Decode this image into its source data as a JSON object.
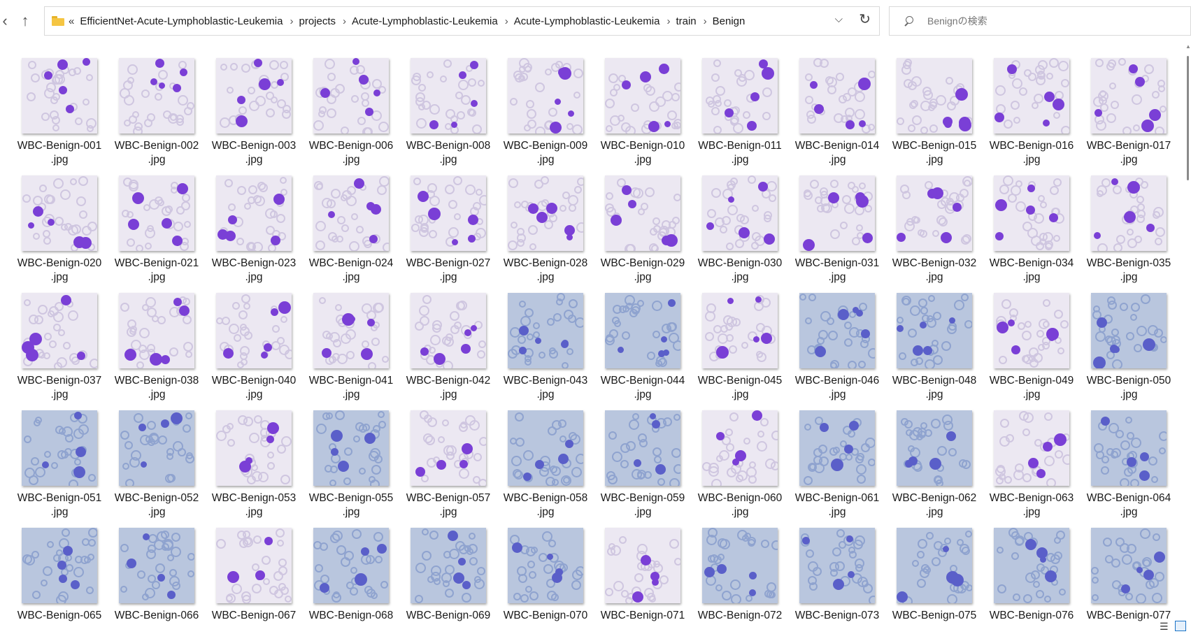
{
  "toolbar": {
    "back_glyph": "‹",
    "up_glyph": "↑",
    "address": {
      "overflow_glyph": "«",
      "crumbs": [
        "EfficientNet-Acute-Lymphoblastic-Leukemia",
        "projects",
        "Acute-Lymphoblastic-Leukemia",
        "Acute-Lymphoblastic-Leukemia",
        "train",
        "Benign"
      ],
      "separator": "›",
      "dropdown_glyph": "⌵",
      "refresh_glyph": "↻"
    },
    "search": {
      "placeholder": "Benignの検索"
    }
  },
  "files": [
    {
      "name": "WBC-Benign-001",
      "ext": ".jpg"
    },
    {
      "name": "WBC-Benign-002",
      "ext": ".jpg"
    },
    {
      "name": "WBC-Benign-003",
      "ext": ".jpg"
    },
    {
      "name": "WBC-Benign-006",
      "ext": ".jpg"
    },
    {
      "name": "WBC-Benign-008",
      "ext": ".jpg"
    },
    {
      "name": "WBC-Benign-009",
      "ext": ".jpg"
    },
    {
      "name": "WBC-Benign-010",
      "ext": ".jpg"
    },
    {
      "name": "WBC-Benign-011",
      "ext": ".jpg"
    },
    {
      "name": "WBC-Benign-014",
      "ext": ".jpg"
    },
    {
      "name": "WBC-Benign-015",
      "ext": ".jpg"
    },
    {
      "name": "WBC-Benign-016",
      "ext": ".jpg"
    },
    {
      "name": "WBC-Benign-017",
      "ext": ".jpg"
    },
    {
      "name": "WBC-Benign-020",
      "ext": ".jpg"
    },
    {
      "name": "WBC-Benign-021",
      "ext": ".jpg"
    },
    {
      "name": "WBC-Benign-023",
      "ext": ".jpg"
    },
    {
      "name": "WBC-Benign-024",
      "ext": ".jpg"
    },
    {
      "name": "WBC-Benign-027",
      "ext": ".jpg"
    },
    {
      "name": "WBC-Benign-028",
      "ext": ".jpg"
    },
    {
      "name": "WBC-Benign-029",
      "ext": ".jpg"
    },
    {
      "name": "WBC-Benign-030",
      "ext": ".jpg"
    },
    {
      "name": "WBC-Benign-031",
      "ext": ".jpg"
    },
    {
      "name": "WBC-Benign-032",
      "ext": ".jpg"
    },
    {
      "name": "WBC-Benign-034",
      "ext": ".jpg"
    },
    {
      "name": "WBC-Benign-035",
      "ext": ".jpg"
    },
    {
      "name": "WBC-Benign-037",
      "ext": ".jpg"
    },
    {
      "name": "WBC-Benign-038",
      "ext": ".jpg"
    },
    {
      "name": "WBC-Benign-040",
      "ext": ".jpg"
    },
    {
      "name": "WBC-Benign-041",
      "ext": ".jpg"
    },
    {
      "name": "WBC-Benign-042",
      "ext": ".jpg"
    },
    {
      "name": "WBC-Benign-043",
      "ext": ".jpg"
    },
    {
      "name": "WBC-Benign-044",
      "ext": ".jpg"
    },
    {
      "name": "WBC-Benign-045",
      "ext": ".jpg"
    },
    {
      "name": "WBC-Benign-046",
      "ext": ".jpg"
    },
    {
      "name": "WBC-Benign-048",
      "ext": ".jpg"
    },
    {
      "name": "WBC-Benign-049",
      "ext": ".jpg"
    },
    {
      "name": "WBC-Benign-050",
      "ext": ".jpg"
    },
    {
      "name": "WBC-Benign-051",
      "ext": ".jpg"
    },
    {
      "name": "WBC-Benign-052",
      "ext": ".jpg"
    },
    {
      "name": "WBC-Benign-053",
      "ext": ".jpg"
    },
    {
      "name": "WBC-Benign-055",
      "ext": ".jpg"
    },
    {
      "name": "WBC-Benign-057",
      "ext": ".jpg"
    },
    {
      "name": "WBC-Benign-058",
      "ext": ".jpg"
    },
    {
      "name": "WBC-Benign-059",
      "ext": ".jpg"
    },
    {
      "name": "WBC-Benign-060",
      "ext": ".jpg"
    },
    {
      "name": "WBC-Benign-061",
      "ext": ".jpg"
    },
    {
      "name": "WBC-Benign-062",
      "ext": ".jpg"
    },
    {
      "name": "WBC-Benign-063",
      "ext": ".jpg"
    },
    {
      "name": "WBC-Benign-064",
      "ext": ".jpg"
    },
    {
      "name": "WBC-Benign-065",
      "ext": ""
    },
    {
      "name": "WBC-Benign-066",
      "ext": ""
    },
    {
      "name": "WBC-Benign-067",
      "ext": ""
    },
    {
      "name": "WBC-Benign-068",
      "ext": ""
    },
    {
      "name": "WBC-Benign-069",
      "ext": ""
    },
    {
      "name": "WBC-Benign-070",
      "ext": ""
    },
    {
      "name": "WBC-Benign-071",
      "ext": ""
    },
    {
      "name": "WBC-Benign-072",
      "ext": ""
    },
    {
      "name": "WBC-Benign-073",
      "ext": ""
    },
    {
      "name": "WBC-Benign-075",
      "ext": ""
    },
    {
      "name": "WBC-Benign-076",
      "ext": ""
    },
    {
      "name": "WBC-Benign-077",
      "ext": ""
    }
  ],
  "thumb_styles": {
    "purple": {
      "bg": "#ece8f2",
      "rbc": "#cfc6e0",
      "wbc": "#7a3fd6"
    },
    "blue": {
      "bg": "#b9c6de",
      "rbc": "#8fa3cf",
      "wbc": "#5a5fc9"
    }
  },
  "thumb_style_per_file": [
    "purple",
    "purple",
    "purple",
    "purple",
    "purple",
    "purple",
    "purple",
    "purple",
    "purple",
    "purple",
    "purple",
    "purple",
    "purple",
    "purple",
    "purple",
    "purple",
    "purple",
    "purple",
    "purple",
    "purple",
    "purple",
    "purple",
    "purple",
    "purple",
    "purple",
    "purple",
    "purple",
    "purple",
    "purple",
    "blue",
    "blue",
    "purple",
    "blue",
    "blue",
    "purple",
    "blue",
    "blue",
    "blue",
    "purple",
    "blue",
    "purple",
    "blue",
    "blue",
    "purple",
    "blue",
    "blue",
    "purple",
    "blue",
    "blue",
    "blue",
    "purple",
    "blue",
    "blue",
    "blue",
    "purple",
    "blue",
    "blue",
    "blue",
    "blue",
    "blue"
  ],
  "statusbar": {
    "details_view_glyph": "☰"
  }
}
